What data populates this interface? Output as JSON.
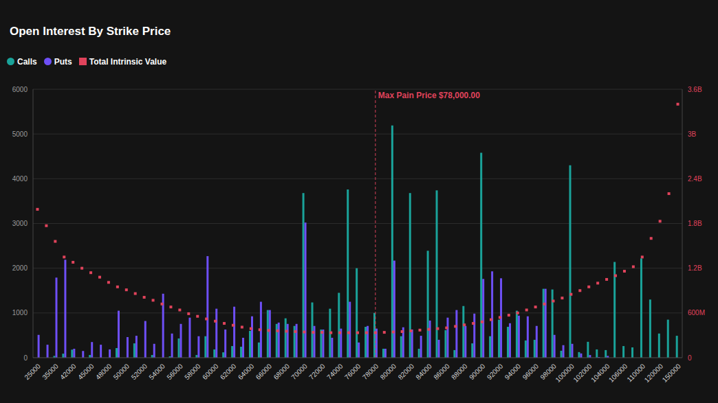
{
  "chart_data": {
    "type": "bar",
    "title": "Open Interest By Strike Price",
    "categories": [
      "25000",
      null,
      "35000",
      null,
      "42000",
      null,
      "45000",
      null,
      "48000",
      null,
      "50000",
      null,
      "52000",
      null,
      "54000",
      null,
      "56000",
      null,
      "58000",
      null,
      "60000",
      null,
      "62000",
      null,
      "64000",
      null,
      "66000",
      null,
      "68000",
      null,
      "70000",
      null,
      "72000",
      null,
      "74000",
      null,
      "76000",
      null,
      "78000",
      null,
      "80000",
      null,
      "82000",
      null,
      "84000",
      null,
      "86000",
      null,
      "88000",
      null,
      "90000",
      null,
      "92000",
      null,
      "94000",
      null,
      "96000",
      null,
      "98000",
      null,
      "100000",
      null,
      "102000",
      null,
      "104000",
      null,
      "106000",
      null,
      "110000",
      null,
      "120000",
      null,
      "150000"
    ],
    "series": [
      {
        "name": "Calls",
        "type": "bar",
        "color": "#1aa39a",
        "values": [
          0,
          0,
          40,
          90,
          180,
          0,
          60,
          0,
          0,
          215,
          0,
          320,
          0,
          60,
          0,
          30,
          430,
          0,
          60,
          480,
          185,
          120,
          260,
          245,
          600,
          340,
          1065,
          755,
          880,
          710,
          3680,
          1235,
          630,
          1095,
          1450,
          3760,
          2000,
          690,
          1000,
          200,
          5190,
          480,
          3680,
          200,
          2390,
          3740,
          615,
          170,
          1155,
          320,
          4580,
          480,
          850,
          690,
          1050,
          385,
          400,
          1540,
          1525,
          155,
          4300,
          125,
          355,
          185,
          170,
          2140,
          260,
          230,
          2220,
          1300,
          540,
          850,
          490
        ]
      },
      {
        "name": "Puts",
        "type": "bar",
        "color": "#6e4ff6",
        "values": [
          510,
          290,
          1790,
          2190,
          200,
          150,
          350,
          290,
          185,
          1050,
          460,
          490,
          820,
          310,
          1430,
          540,
          755,
          895,
          480,
          2270,
          1095,
          630,
          1140,
          445,
          925,
          1250,
          1065,
          785,
          755,
          755,
          3020,
          710,
          630,
          445,
          650,
          1250,
          340,
          710,
          650,
          200,
          2170,
          680,
          630,
          490,
          830,
          400,
          895,
          1065,
          710,
          985,
          1760,
          1930,
          1775,
          770,
          940,
          925,
          710,
          1540,
          510,
          280,
          310,
          95,
          60,
          15,
          40,
          0,
          0,
          0,
          0,
          0,
          0,
          0,
          0
        ]
      },
      {
        "name": "Total Intrinsic Value",
        "type": "scatter",
        "marker": "square",
        "axis": "y2",
        "color": "#e0435b",
        "values": [
          1990000000,
          1770000000,
          1560000000,
          1350000000,
          1280000000,
          1200000000,
          1140000000,
          1080000000,
          1010000000,
          950000000,
          910000000,
          860000000,
          810000000,
          770000000,
          720000000,
          680000000,
          640000000,
          590000000,
          555000000,
          520000000,
          490000000,
          460000000,
          435000000,
          410000000,
          390000000,
          375000000,
          365000000,
          360000000,
          355000000,
          350000000,
          345000000,
          340000000,
          340000000,
          335000000,
          335000000,
          335000000,
          335000000,
          335000000,
          335000000,
          340000000,
          345000000,
          350000000,
          360000000,
          370000000,
          380000000,
          390000000,
          400000000,
          420000000,
          440000000,
          460000000,
          480000000,
          510000000,
          540000000,
          570000000,
          600000000,
          640000000,
          680000000,
          720000000,
          760000000,
          800000000,
          850000000,
          900000000,
          950000000,
          1000000000,
          1050000000,
          1100000000,
          1160000000,
          1220000000,
          1350000000,
          1600000000,
          1830000000,
          2200000000,
          3400000000
        ]
      }
    ],
    "ylim": [
      0,
      6000
    ],
    "yticks": [
      0,
      1000,
      2000,
      3000,
      4000,
      5000,
      6000
    ],
    "y2lim": [
      0,
      3600000000
    ],
    "y2ticks": [
      0,
      {
        "value": 600000000,
        "label": "600M"
      },
      {
        "value": 1200000000,
        "label": "1.2B"
      },
      {
        "value": 1800000000,
        "label": "1.8B"
      },
      {
        "value": 2400000000,
        "label": "2.4B"
      },
      {
        "value": 3000000000,
        "label": "3B"
      },
      {
        "value": 3600000000,
        "label": "3.6B"
      }
    ],
    "annotations": [
      {
        "text": "Max Pain Price $78,000.00",
        "x": "78000"
      }
    ],
    "grid": true,
    "legend": "top-left"
  }
}
